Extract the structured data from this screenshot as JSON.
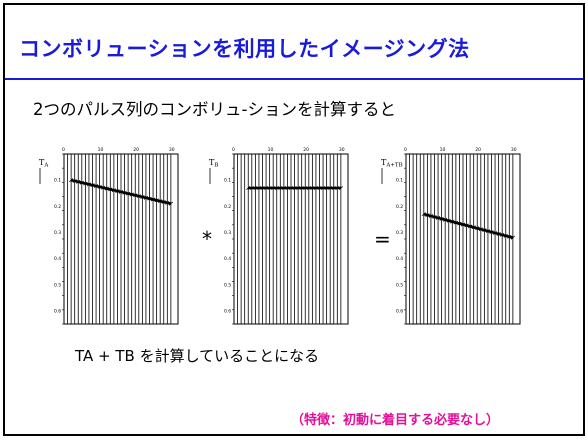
{
  "slide": {
    "title": "コンボリューションを利用したイメージング法",
    "subtitle": "2つのパルス列のコンボリュ-ションを計算すると",
    "operators": {
      "convolve": "*",
      "equals": "="
    },
    "caption": "TA + TB を計算していることになる",
    "note": "（特徴：初動に着目する必要なし）",
    "colors": {
      "title": "#1a1adb",
      "note": "#e0119a"
    }
  },
  "panels": [
    {
      "label": "T",
      "label_sub": "A",
      "x_ticks": [
        "0",
        "10",
        "20",
        "30"
      ],
      "y_ticks": [
        "0.1",
        "0.2",
        "0.3",
        "0.4",
        "0.5",
        "0.6"
      ]
    },
    {
      "label": "T",
      "label_sub": "B",
      "x_ticks": [
        "0",
        "10",
        "20",
        "30"
      ],
      "y_ticks": [
        "0.1",
        "0.2",
        "0.3",
        "0.4",
        "0.5",
        "0.6"
      ]
    },
    {
      "label": "T",
      "label_sub": "A+TB",
      "x_ticks": [
        "0",
        "10",
        "20",
        "30"
      ],
      "y_ticks": [
        "0.1",
        "0.2",
        "0.3",
        "0.4",
        "0.5",
        "0.6"
      ]
    }
  ],
  "chart_data": [
    {
      "type": "line",
      "title": "",
      "xlabel": "",
      "ylabel": "TA",
      "xlim": [
        0,
        32
      ],
      "ylim": [
        0,
        0.65
      ],
      "series": [
        {
          "x": [
            2,
            30
          ],
          "y": [
            0.1,
            0.19
          ]
        }
      ]
    },
    {
      "type": "line",
      "title": "",
      "xlabel": "",
      "ylabel": "TB",
      "xlim": [
        0,
        32
      ],
      "ylim": [
        0,
        0.65
      ],
      "series": [
        {
          "x": [
            4,
            30
          ],
          "y": [
            0.13,
            0.13
          ]
        }
      ]
    },
    {
      "type": "line",
      "title": "",
      "xlabel": "",
      "ylabel": "TA+TB",
      "xlim": [
        0,
        32
      ],
      "ylim": [
        0,
        0.65
      ],
      "series": [
        {
          "x": [
            5,
            30
          ],
          "y": [
            0.23,
            0.32
          ]
        }
      ]
    }
  ]
}
